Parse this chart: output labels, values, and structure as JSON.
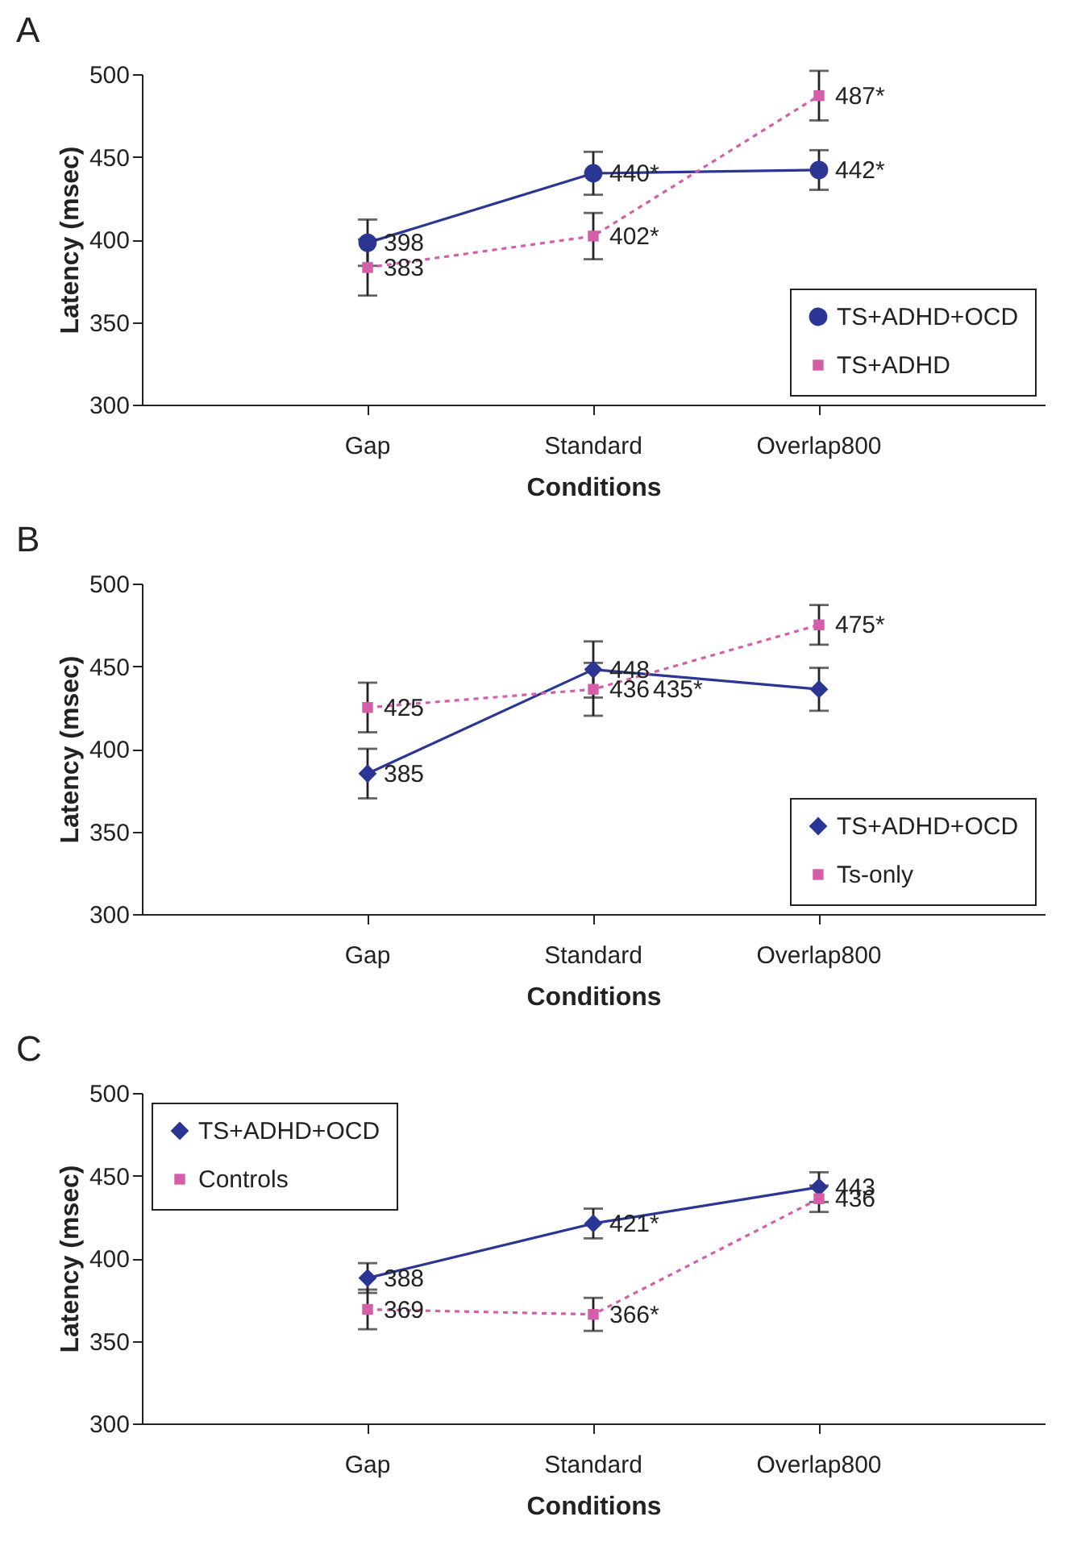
{
  "chart_data": [
    {
      "type": "line",
      "title": "A",
      "xlabel": "Conditions",
      "ylabel": "Latency (msec)",
      "categories": [
        "Gap",
        "Standard",
        "Overlap800"
      ],
      "ylim": [
        300,
        500
      ],
      "yticks": [
        300,
        350,
        400,
        450,
        500
      ],
      "legend": "bottom right",
      "series": [
        {
          "name": "TS+ADHD+OCD",
          "color": "#2b3594",
          "marker": "circle",
          "line_style": "solid",
          "values": [
            398,
            440,
            442
          ],
          "errors": [
            14,
            13,
            12
          ],
          "value_labels": [
            "398",
            "440*",
            "442*"
          ]
        },
        {
          "name": "TS+ADHD",
          "color": "#d45ea8",
          "marker": "square",
          "line_style": "dotted",
          "values": [
            383,
            402,
            487
          ],
          "errors": [
            17,
            14,
            15
          ],
          "value_labels": [
            "383",
            "402*",
            "487*"
          ]
        }
      ]
    },
    {
      "type": "line",
      "title": "B",
      "xlabel": "Conditions",
      "ylabel": "Latency (msec)",
      "categories": [
        "Gap",
        "Standard",
        "Overlap800"
      ],
      "ylim": [
        300,
        500
      ],
      "yticks": [
        300,
        350,
        400,
        450,
        500
      ],
      "legend": "bottom right",
      "series": [
        {
          "name": "TS+ADHD+OCD",
          "color": "#2b3594",
          "marker": "diamond",
          "line_style": "solid",
          "values": [
            385,
            448,
            436
          ],
          "errors": [
            15,
            17,
            13
          ],
          "value_labels": [
            "385",
            "448",
            null
          ]
        },
        {
          "name": "Ts-only",
          "color": "#d45ea8",
          "marker": "square",
          "line_style": "dotted",
          "values": [
            425,
            436,
            475
          ],
          "errors": [
            15,
            16,
            12
          ],
          "value_labels": [
            "425",
            "436",
            "475*"
          ]
        }
      ],
      "annotations": [
        {
          "text": "435*",
          "x": "Standard",
          "y": 436
        }
      ]
    },
    {
      "type": "line",
      "title": "C",
      "xlabel": "Conditions",
      "ylabel": "Latency (msec)",
      "categories": [
        "Gap",
        "Standard",
        "Overlap800"
      ],
      "ylim": [
        300,
        500
      ],
      "yticks": [
        300,
        350,
        400,
        450,
        500
      ],
      "legend": "top left",
      "series": [
        {
          "name": "TS+ADHD+OCD",
          "color": "#2b3594",
          "marker": "diamond",
          "line_style": "solid",
          "values": [
            388,
            421,
            443
          ],
          "errors": [
            9,
            9,
            9
          ],
          "value_labels": [
            "388",
            "421*",
            "443"
          ]
        },
        {
          "name": "Controls",
          "color": "#d45ea8",
          "marker": "square",
          "line_style": "dotted",
          "values": [
            369,
            366,
            436
          ],
          "errors": [
            12,
            10,
            8
          ],
          "value_labels": [
            "369",
            "366*",
            "436"
          ]
        }
      ]
    }
  ]
}
